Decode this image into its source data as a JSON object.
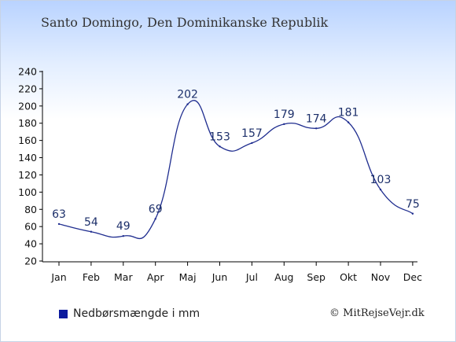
{
  "location": "Santo Domingo, Den Dominikanske Republik",
  "legend_label": "Nedbørsmængde i mm",
  "copyright": "© MitRejseVejr.dk",
  "colors": {
    "line": "#1f2d8f",
    "label": "#1c2f6a",
    "legend_swatch": "#0c1a9e",
    "axis": "#000000"
  },
  "chart_data": {
    "type": "line",
    "categories": [
      "Jan",
      "Feb",
      "Mar",
      "Apr",
      "Maj",
      "Jun",
      "Jul",
      "Aug",
      "Sep",
      "Okt",
      "Nov",
      "Dec"
    ],
    "series": [
      {
        "name": "Nedbørsmængde i mm",
        "values": [
          63,
          54,
          49,
          69,
          202,
          153,
          157,
          179,
          174,
          181,
          103,
          75
        ]
      }
    ],
    "data_labels": [
      "63",
      "54",
      "49",
      "69",
      "202",
      "153",
      "157",
      "179",
      "174",
      "181",
      "103",
      "75"
    ],
    "y_ticks": [
      "20",
      "40",
      "60",
      "80",
      "100",
      "120",
      "140",
      "160",
      "180",
      "200",
      "220",
      "240"
    ],
    "ylim": [
      20,
      240
    ],
    "grid": false,
    "legend": "bottom-left"
  }
}
